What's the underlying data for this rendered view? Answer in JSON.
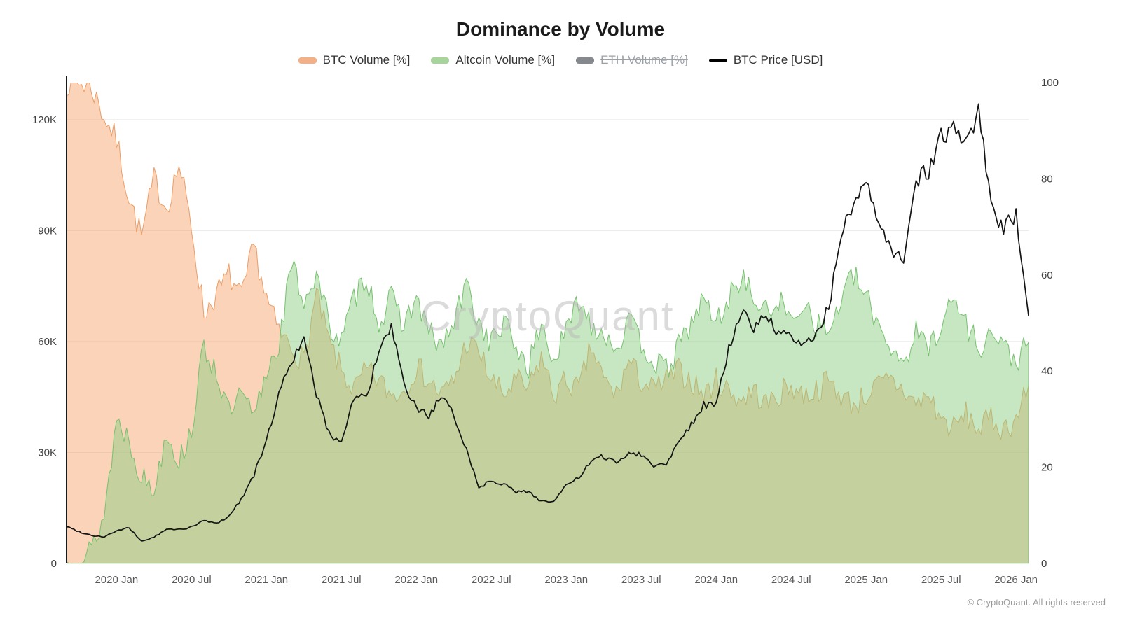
{
  "title": "Dominance by Volume",
  "watermark": "CryptoQuant",
  "footer": "© CryptoQuant. All rights reserved",
  "legend": [
    {
      "label": "BTC Volume [%]",
      "color": "#f3b087",
      "type": "area",
      "disabled": false
    },
    {
      "label": "Altcoin Volume [%]",
      "color": "#a6d49a",
      "type": "area",
      "disabled": false
    },
    {
      "label": "ETH Volume [%]",
      "color": "#85888c",
      "type": "area",
      "disabled": true
    },
    {
      "label": "BTC Price [USD]",
      "color": "#000000",
      "type": "line",
      "disabled": false
    }
  ],
  "chart_data": {
    "type": "area",
    "subtype": "two semi-transparent area series on right % axis plus black price line on left USD axis",
    "x_start_month": "2019-09",
    "x_end_month": "2026-02",
    "x_tick_labels": [
      "2020 Jan",
      "2020 Jul",
      "2021 Jan",
      "2021 Jul",
      "2022 Jan",
      "2022 Jul",
      "2023 Jan",
      "2023 Jul",
      "2024 Jan",
      "2024 Jul",
      "2025 Jan",
      "2025 Jul",
      "2026 Jan"
    ],
    "x_tick_first_month_index": 4,
    "x_tick_step_months": 6,
    "y_left": {
      "ticks": [
        "0",
        "30K",
        "60K",
        "90K",
        "120K"
      ],
      "tick_values": [
        0,
        30000,
        60000,
        90000,
        120000
      ],
      "max": 130000
    },
    "y_right": {
      "ticks": [
        "0",
        "20",
        "40",
        "60",
        "80",
        "100"
      ],
      "tick_values": [
        0,
        20,
        40,
        60,
        80,
        100
      ],
      "max": 100
    },
    "grid": "horizontal-only",
    "legend_position": "top-center",
    "series": [
      {
        "name": "BTC Volume [%]",
        "axis": "right",
        "kind": "area",
        "fill": "#f5a873",
        "fill_opacity": 0.5,
        "stroke": "#eb9d66",
        "values": [
          100,
          100,
          99,
          93,
          88,
          76,
          68,
          80,
          74,
          83,
          70,
          52,
          56,
          60,
          55,
          66,
          55,
          48,
          45,
          42,
          56,
          46,
          40,
          36,
          40,
          38,
          35,
          36,
          41,
          38,
          35,
          38,
          46,
          44,
          38,
          35,
          38,
          36,
          43,
          35,
          38,
          36,
          45,
          38,
          35,
          42,
          38,
          36,
          38,
          40,
          38,
          35,
          38,
          36,
          34,
          36,
          33,
          35,
          37,
          35,
          36,
          38,
          35,
          33,
          35,
          37,
          38,
          36,
          33,
          35,
          30,
          28,
          31,
          28,
          30,
          28,
          30,
          37
        ]
      },
      {
        "name": "Altcoin Volume [%]",
        "axis": "right",
        "kind": "area",
        "fill": "#8ed084",
        "fill_opacity": 0.5,
        "stroke": "#77c170",
        "values": [
          0,
          0,
          3,
          10,
          30,
          26,
          18,
          15,
          28,
          21,
          28,
          45,
          40,
          31,
          35,
          30,
          40,
          46,
          62,
          55,
          60,
          50,
          46,
          55,
          60,
          50,
          55,
          50,
          55,
          48,
          45,
          50,
          58,
          50,
          46,
          50,
          45,
          41,
          50,
          42,
          48,
          55,
          50,
          48,
          45,
          50,
          46,
          42,
          40,
          45,
          50,
          55,
          50,
          55,
          60,
          55,
          52,
          55,
          50,
          55,
          50,
          48,
          55,
          60,
          55,
          50,
          45,
          42,
          48,
          45,
          50,
          55,
          50,
          45,
          48,
          45,
          42,
          46
        ]
      },
      {
        "name": "ETH Volume [%]",
        "axis": "right",
        "kind": "area",
        "hidden": true,
        "values": []
      },
      {
        "name": "BTC Price [USD]",
        "axis": "left",
        "kind": "line",
        "stroke": "#141414",
        "values": [
          10000,
          8600,
          7600,
          7200,
          8800,
          9600,
          6000,
          7100,
          9200,
          9200,
          9800,
          11600,
          10800,
          12800,
          17500,
          24000,
          33000,
          46000,
          55000,
          60000,
          46000,
          35000,
          33000,
          45000,
          45000,
          57000,
          64000,
          48000,
          42000,
          40000,
          45000,
          40000,
          31000,
          20500,
          22500,
          21500,
          19200,
          19500,
          16800,
          16800,
          21000,
          23200,
          27500,
          29000,
          27200,
          30000,
          29500,
          26500,
          26800,
          33500,
          37500,
          43000,
          42800,
          58000,
          68000,
          64000,
          67000,
          62000,
          61000,
          58500,
          62500,
          69000,
          89000,
          97000,
          102000,
          92000,
          84000,
          83000,
          104000,
          106000,
          116000,
          117000,
          113000,
          123000,
          96000,
          90000,
          95000,
          67000
        ]
      }
    ]
  }
}
